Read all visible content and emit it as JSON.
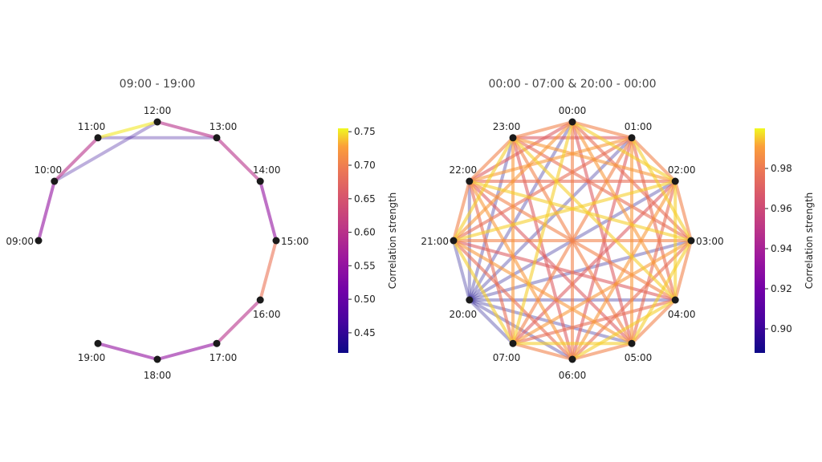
{
  "chart_data": [
    {
      "type": "network",
      "title": "09:00 - 19:00",
      "nodes": [
        "09:00",
        "10:00",
        "11:00",
        "12:00",
        "13:00",
        "14:00",
        "15:00",
        "16:00",
        "17:00",
        "18:00",
        "19:00"
      ],
      "layout": "circle, clockwise from top",
      "edges": [
        {
          "source": "09:00",
          "target": "10:00",
          "value": 0.55
        },
        {
          "source": "10:00",
          "target": "11:00",
          "value": 0.6
        },
        {
          "source": "10:00",
          "target": "12:00",
          "value": 0.45
        },
        {
          "source": "11:00",
          "target": "12:00",
          "value": 0.75
        },
        {
          "source": "11:00",
          "target": "13:00",
          "value": 0.45
        },
        {
          "source": "12:00",
          "target": "13:00",
          "value": 0.6
        },
        {
          "source": "13:00",
          "target": "14:00",
          "value": 0.6
        },
        {
          "source": "14:00",
          "target": "15:00",
          "value": 0.55
        },
        {
          "source": "15:00",
          "target": "16:00",
          "value": 0.69
        },
        {
          "source": "16:00",
          "target": "17:00",
          "value": 0.6
        },
        {
          "source": "17:00",
          "target": "18:00",
          "value": 0.55
        },
        {
          "source": "18:00",
          "target": "19:00",
          "value": 0.55
        }
      ],
      "colorbar": {
        "label": "Correlation strength",
        "min": 0.42,
        "max": 0.755,
        "ticks": [
          0.45,
          0.5,
          0.55,
          0.6,
          0.65,
          0.7,
          0.75
        ],
        "tick_labels": [
          "0.45",
          "0.50",
          "0.55",
          "0.60",
          "0.65",
          "0.70",
          "0.75"
        ]
      }
    },
    {
      "type": "network",
      "title": "00:00 - 07:00 & 20:00 - 00:00",
      "nodes": [
        "00:00",
        "01:00",
        "02:00",
        "03:00",
        "04:00",
        "05:00",
        "06:00",
        "07:00",
        "20:00",
        "21:00",
        "22:00",
        "23:00"
      ],
      "layout": "circle, clockwise from top",
      "edges": "fully connected; edges touching 20:00 ≈ 0.89, all other edges 0.97–0.999",
      "weak_node": "20:00",
      "weak_value": 0.89,
      "strong_range": [
        0.97,
        0.999
      ],
      "colorbar": {
        "label": "Correlation strength",
        "min": 0.888,
        "max": 1.0,
        "ticks": [
          0.9,
          0.92,
          0.94,
          0.96,
          0.98
        ],
        "tick_labels": [
          "0.90",
          "0.92",
          "0.94",
          "0.96",
          "0.98"
        ]
      }
    }
  ],
  "colors": {
    "colormap": "plasma",
    "node": "#1a1a1a"
  }
}
